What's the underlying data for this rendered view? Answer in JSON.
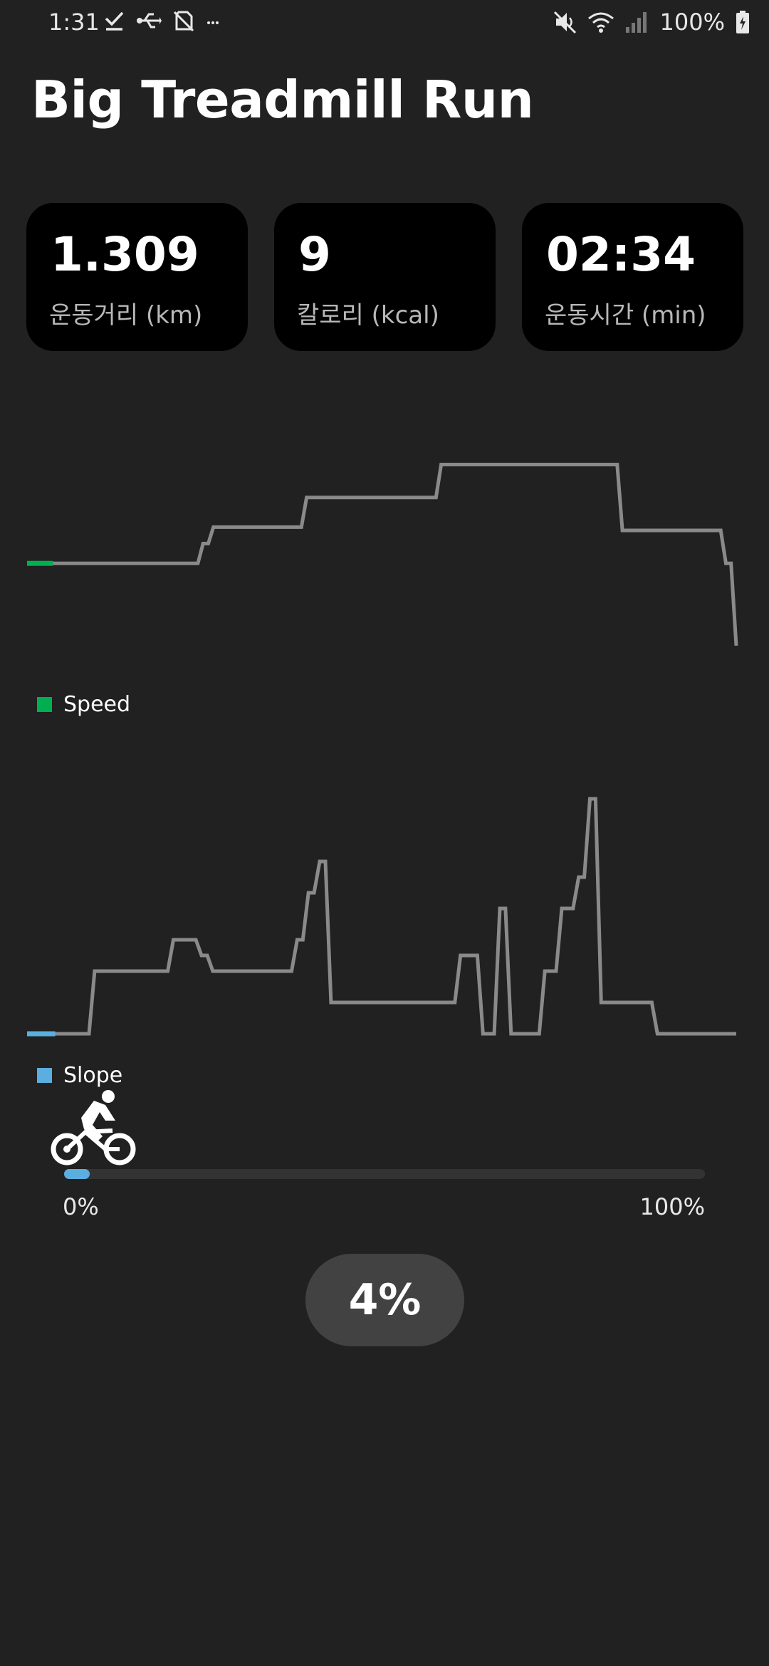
{
  "status_bar": {
    "time": "1:31",
    "left_icons": [
      "check-icon",
      "usb-icon",
      "no-sim-icon",
      "more-icon"
    ],
    "right_icons": [
      "mute-icon",
      "wifi-icon",
      "signal-icon",
      "battery-icon"
    ],
    "battery": "100%"
  },
  "header": {
    "title": "Big Treadmill Run"
  },
  "stats": [
    {
      "value": "1.309",
      "label": "운동거리 (km)"
    },
    {
      "value": "9",
      "label": "칼로리 (kcal)"
    },
    {
      "value": "02:34",
      "label": "운동시간 (min)"
    }
  ],
  "chart_data": [
    {
      "type": "line",
      "series": [
        {
          "name": "Speed",
          "color": "#00b050",
          "values": [
            3,
            3,
            3,
            3,
            3,
            3,
            3,
            3,
            3,
            3,
            3,
            3,
            3,
            3,
            3,
            3,
            3,
            3,
            3,
            3,
            3,
            3,
            3,
            3,
            3,
            3,
            3,
            3,
            3,
            3,
            3,
            3,
            3,
            3,
            3.6,
            3.6,
            4.1,
            4.1,
            4.1,
            4.1,
            4.1,
            4.1,
            4.1,
            4.1,
            4.1,
            4.1,
            4.1,
            4.1,
            4.1,
            4.1,
            4.1,
            4.1,
            4.1,
            4.1,
            5,
            5,
            5,
            5,
            5,
            5,
            5,
            5,
            5,
            5,
            5,
            5,
            5,
            5,
            5,
            5,
            5,
            5,
            5,
            5,
            5,
            5,
            5,
            5,
            5,
            5,
            6,
            6,
            6,
            6,
            6,
            6,
            6,
            6,
            6,
            6,
            6,
            6,
            6,
            6,
            6,
            6,
            6,
            6,
            6,
            6,
            6,
            6,
            6,
            6,
            6,
            6,
            6,
            6,
            6,
            6,
            6,
            6,
            6,
            6,
            6,
            4,
            4,
            4,
            4,
            4,
            4,
            4,
            4,
            4,
            4,
            4,
            4,
            4,
            4,
            4,
            4,
            4,
            4,
            4,
            4,
            3,
            3,
            0.5
          ],
          "progress_index": 5
        }
      ],
      "grid": false,
      "legend": "bottom-left"
    },
    {
      "type": "line",
      "series": [
        {
          "name": "Slope",
          "color": "#5aaee0",
          "values": [
            0,
            0,
            0,
            0,
            0,
            0,
            0,
            0,
            0,
            0,
            0,
            0,
            2,
            2,
            2,
            2,
            2,
            2,
            2,
            2,
            2,
            2,
            2,
            2,
            2,
            2,
            3,
            3,
            3,
            3,
            3,
            2.5,
            2.5,
            2,
            2,
            2,
            2,
            2,
            2,
            2,
            2,
            2,
            2,
            2,
            2,
            2,
            2,
            2,
            3,
            3,
            4.5,
            4.5,
            5.5,
            5.5,
            1,
            1,
            1,
            1,
            1,
            1,
            1,
            1,
            1,
            1,
            1,
            1,
            1,
            1,
            1,
            1,
            1,
            1,
            1,
            1,
            1,
            1,
            1,
            2.5,
            2.5,
            2.5,
            2.5,
            0,
            0,
            0,
            4,
            4,
            0,
            0,
            0,
            0,
            0,
            0,
            2,
            2,
            2,
            4,
            4,
            4,
            5,
            5,
            7.5,
            7.5,
            1,
            1,
            1,
            1,
            1,
            1,
            1,
            1,
            1,
            1,
            0,
            0,
            0,
            0,
            0,
            0,
            0,
            0,
            0,
            0,
            0,
            0,
            0,
            0,
            0
          ],
          "progress_index": 5
        }
      ],
      "grid": false,
      "legend": "bottom-left"
    }
  ],
  "progress": {
    "percent": 4,
    "start_label": "0%",
    "end_label": "100%",
    "value_label": "4%",
    "icon": "cyclist-icon",
    "color": "#5aaee0"
  }
}
